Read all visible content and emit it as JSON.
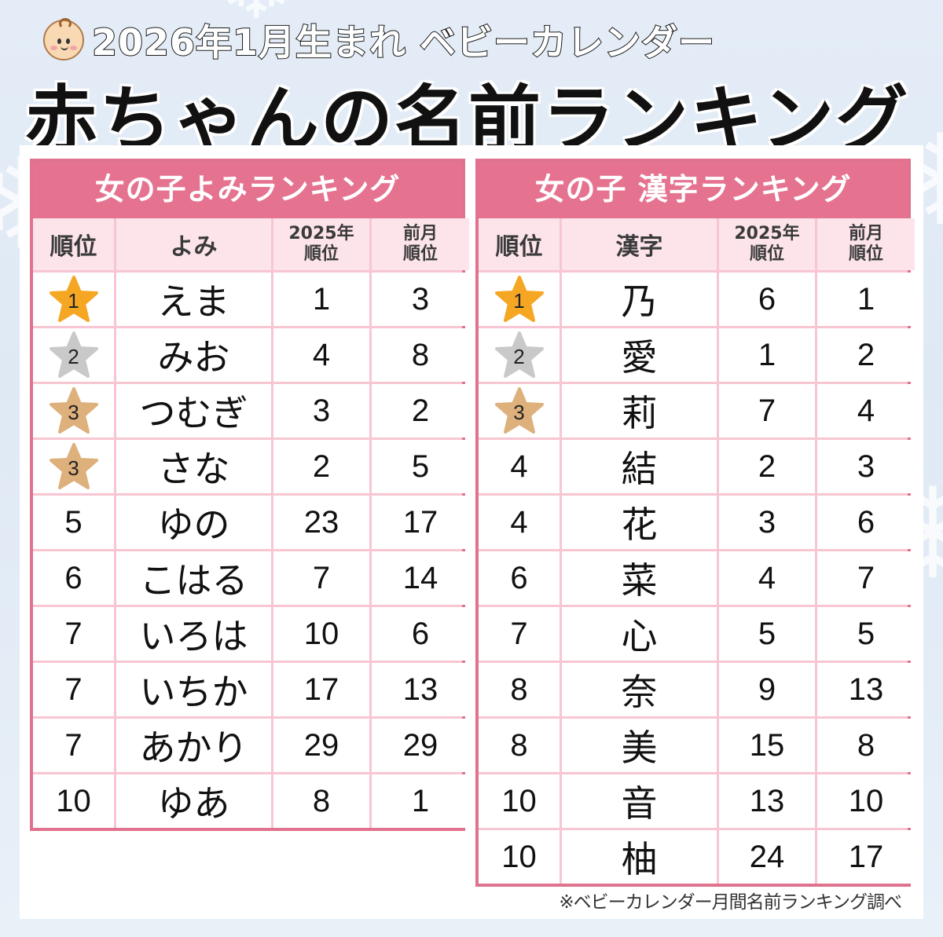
{
  "header": {
    "subtitle": "2026年1月生まれ ベビーカレンダー",
    "title": "赤ちゃんの名前ランキング",
    "icon": "baby-face-icon"
  },
  "colors": {
    "accent_pink": "#e57390",
    "border_pink": "#e0728f",
    "header_row_bg": "#fce4ea",
    "grid_line": "#f7c6d2",
    "gold": "#f5a623",
    "silver": "#c9c9c9",
    "bronze": "#ddb07c"
  },
  "yomi_ranking": {
    "title": "女の子よみランキング",
    "columns": [
      "順位",
      "よみ",
      "2025年\n順位",
      "前月\n順位"
    ],
    "col_rank": "順位",
    "col_name": "よみ",
    "col_2025_a": "2025年",
    "col_2025_b": "順位",
    "col_prev_a": "前月",
    "col_prev_b": "順位",
    "rows": [
      {
        "rank": "1",
        "name": "えま",
        "y2025": "1",
        "prev": "3",
        "medal": "gold"
      },
      {
        "rank": "2",
        "name": "みお",
        "y2025": "4",
        "prev": "8",
        "medal": "silver"
      },
      {
        "rank": "3",
        "name": "つむぎ",
        "y2025": "3",
        "prev": "2",
        "medal": "bronze"
      },
      {
        "rank": "3",
        "name": "さな",
        "y2025": "2",
        "prev": "5",
        "medal": "bronze"
      },
      {
        "rank": "5",
        "name": "ゆの",
        "y2025": "23",
        "prev": "17",
        "medal": ""
      },
      {
        "rank": "6",
        "name": "こはる",
        "y2025": "7",
        "prev": "14",
        "medal": ""
      },
      {
        "rank": "7",
        "name": "いろは",
        "y2025": "10",
        "prev": "6",
        "medal": ""
      },
      {
        "rank": "7",
        "name": "いちか",
        "y2025": "17",
        "prev": "13",
        "medal": ""
      },
      {
        "rank": "7",
        "name": "あかり",
        "y2025": "29",
        "prev": "29",
        "medal": ""
      },
      {
        "rank": "10",
        "name": "ゆあ",
        "y2025": "8",
        "prev": "1",
        "medal": ""
      }
    ]
  },
  "kanji_ranking": {
    "title": "女の子 漢字ランキング",
    "col_rank": "順位",
    "col_name": "漢字",
    "col_2025_a": "2025年",
    "col_2025_b": "順位",
    "col_prev_a": "前月",
    "col_prev_b": "順位",
    "rows": [
      {
        "rank": "1",
        "name": "乃",
        "y2025": "6",
        "prev": "1",
        "medal": "gold"
      },
      {
        "rank": "2",
        "name": "愛",
        "y2025": "1",
        "prev": "2",
        "medal": "silver"
      },
      {
        "rank": "3",
        "name": "莉",
        "y2025": "7",
        "prev": "4",
        "medal": "bronze"
      },
      {
        "rank": "4",
        "name": "結",
        "y2025": "2",
        "prev": "3",
        "medal": ""
      },
      {
        "rank": "4",
        "name": "花",
        "y2025": "3",
        "prev": "6",
        "medal": ""
      },
      {
        "rank": "6",
        "name": "菜",
        "y2025": "4",
        "prev": "7",
        "medal": ""
      },
      {
        "rank": "7",
        "name": "心",
        "y2025": "5",
        "prev": "5",
        "medal": ""
      },
      {
        "rank": "8",
        "name": "奈",
        "y2025": "9",
        "prev": "13",
        "medal": ""
      },
      {
        "rank": "8",
        "name": "美",
        "y2025": "15",
        "prev": "8",
        "medal": ""
      },
      {
        "rank": "10",
        "name": "音",
        "y2025": "13",
        "prev": "10",
        "medal": ""
      },
      {
        "rank": "10",
        "name": "柚",
        "y2025": "24",
        "prev": "17",
        "medal": ""
      }
    ]
  },
  "footnote": "※ベビーカレンダー月間名前ランキング調べ"
}
